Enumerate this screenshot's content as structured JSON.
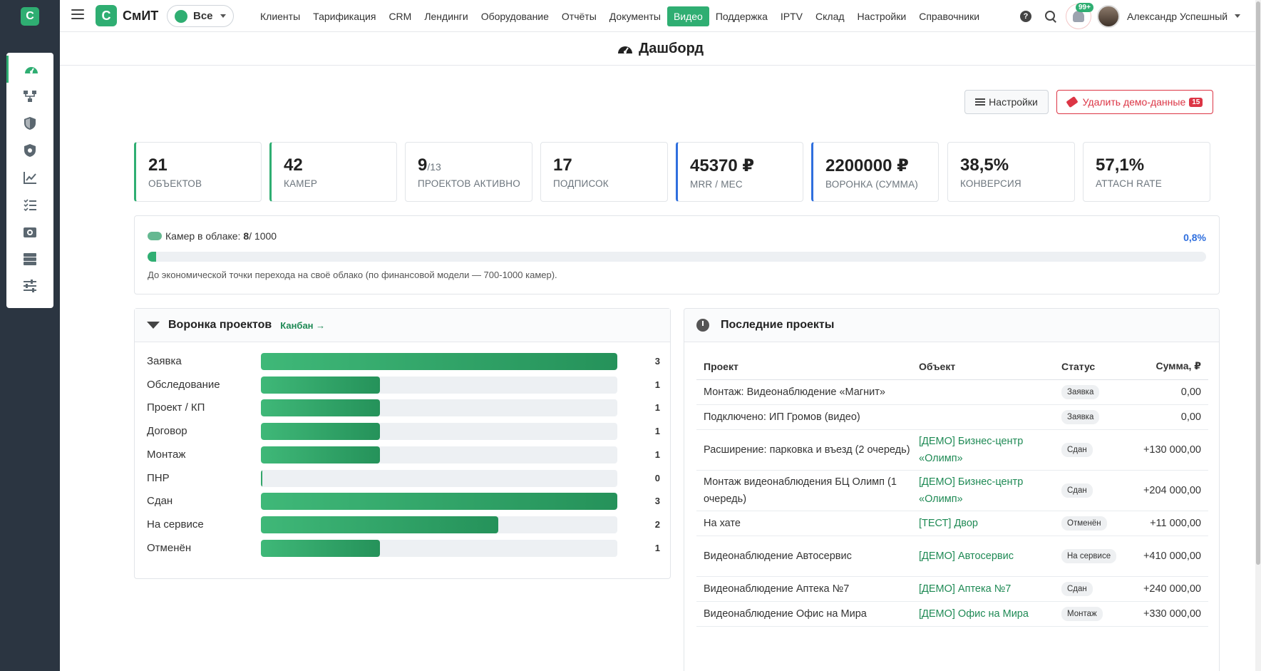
{
  "app": {
    "logo_letter": "С",
    "brand": "СмИТ",
    "scope": "Все"
  },
  "nav": [
    "Клиенты",
    "Тарификация",
    "CRM",
    "Лендинги",
    "Оборудование",
    "Отчёты",
    "Документы",
    "Видео",
    "Поддержка",
    "IPTV",
    "Склад",
    "Настройки",
    "Справочники"
  ],
  "nav_active": "Видео",
  "topbar": {
    "help_glyph": "?",
    "notifications_badge": "99+",
    "user_name": "Александр Успешный"
  },
  "sidebar_icons": [
    "dashboard-icon",
    "hierarchy-icon",
    "shield-icon",
    "shield-gear-icon",
    "chart-line-icon",
    "checklist-icon",
    "camera-icon",
    "server-icon",
    "sliders-icon"
  ],
  "page": {
    "title": "Дашборд"
  },
  "actions": {
    "settings_label": "Настройки",
    "delete_label": "Удалить демо-данные",
    "delete_count": "15"
  },
  "kpis": [
    {
      "value": "21",
      "sub": "",
      "label": "объектов",
      "accent": "green"
    },
    {
      "value": "42",
      "sub": "",
      "label": "камер",
      "accent": "green"
    },
    {
      "value": "9",
      "sub": "/13",
      "label": "проектов активно",
      "accent": "none"
    },
    {
      "value": "17",
      "sub": "",
      "label": "подписок",
      "accent": "none"
    },
    {
      "value": "45370 ₽",
      "sub": "",
      "label": "MRR / мес",
      "accent": "blue"
    },
    {
      "value": "2200000 ₽",
      "sub": "",
      "label": "Воронка (сумма)",
      "accent": "blue"
    },
    {
      "value": "38,5%",
      "sub": "",
      "label": "Конверсия",
      "accent": "none"
    },
    {
      "value": "57,1%",
      "sub": "",
      "label": "Attach rate",
      "accent": "none"
    }
  ],
  "cloud": {
    "label": "Камер в облаке:",
    "used": "8",
    "total": " / 1000",
    "percent_text": "0,8%",
    "fill_fraction": 0.008,
    "note": "До экономической точки перехода на своё облако (по финансовой модели — 700-1000 камер)."
  },
  "funnel": {
    "title": "Воронка проектов",
    "kanban_link": "Канбан →",
    "max": 3,
    "stages": [
      {
        "label": "Заявка",
        "count": 3
      },
      {
        "label": "Обследование",
        "count": 1
      },
      {
        "label": "Проект / КП",
        "count": 1
      },
      {
        "label": "Договор",
        "count": 1
      },
      {
        "label": "Монтаж",
        "count": 1
      },
      {
        "label": "ПНР",
        "count": 0
      },
      {
        "label": "Сдан",
        "count": 3
      },
      {
        "label": "На сервисе",
        "count": 2
      },
      {
        "label": "Отменён",
        "count": 1
      }
    ]
  },
  "recent": {
    "title": "Последние проекты",
    "columns": [
      "Проект",
      "Объект",
      "Статус",
      "Сумма, ₽"
    ],
    "rows": [
      {
        "project": "Монтаж: Видеонаблюдение «Магнит»",
        "object": "",
        "status": "Заявка",
        "sum": "0,00"
      },
      {
        "project": "Подключено: ИП Громов (видео)",
        "object": "",
        "status": "Заявка",
        "sum": "0,00"
      },
      {
        "project": "Расширение: парковка и въезд (2 очередь)",
        "object": "[ДЕМО] Бизнес-центр «Олимп»",
        "status": "Сдан",
        "sum": "+130 000,00"
      },
      {
        "project": "Монтаж видеонаблюдения БЦ Олимп (1 очередь)",
        "object": "[ДЕМО] Бизнес-центр «Олимп»",
        "status": "Сдан",
        "sum": "+204 000,00"
      },
      {
        "project": "На хате",
        "object": "[ТЕСТ] Двор",
        "status": "Отменён",
        "sum": "+11 000,00"
      },
      {
        "project": "Видеонаблюдение Автосервис",
        "object": "[ДЕМО] Автосервис",
        "status": "На сервисе",
        "sum": "+410 000,00"
      },
      {
        "project": "Видеонаблюдение Аптека №7",
        "object": "[ДЕМО] Аптека №7",
        "status": "Сдан",
        "sum": "+240 000,00"
      },
      {
        "project": "Видеонаблюдение Офис на Мира",
        "object": "[ДЕМО] Офис на Мира",
        "status": "Монтаж",
        "sum": "+330 000,00"
      }
    ]
  }
}
